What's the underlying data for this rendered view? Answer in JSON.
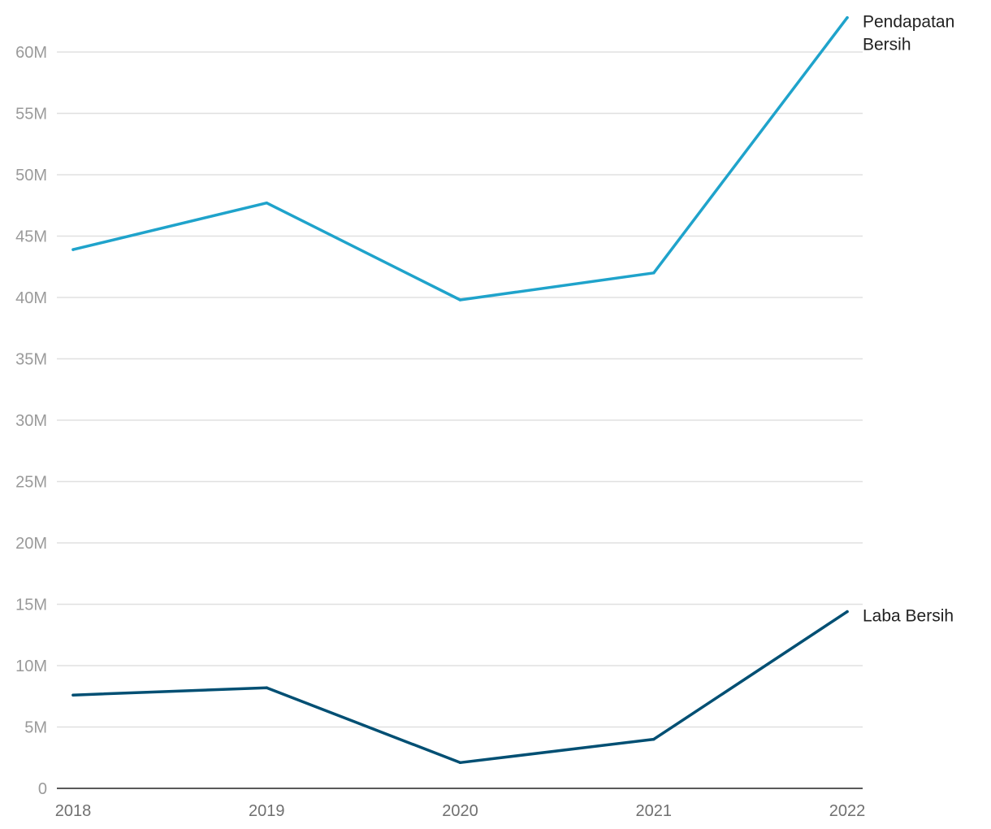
{
  "chart_data": {
    "type": "line",
    "x": [
      "2018",
      "2019",
      "2020",
      "2021",
      "2022"
    ],
    "ylim": [
      0,
      60000000
    ],
    "y_ticks": [
      "0",
      "5M",
      "10M",
      "15M",
      "20M",
      "25M",
      "30M",
      "35M",
      "40M",
      "45M",
      "50M",
      "55M",
      "60M"
    ],
    "grid": true,
    "legend": "direct labels at line ends (right)",
    "series": [
      {
        "name": "Pendapatan Bersih",
        "name_lines": [
          "Pendapatan",
          "Bersih"
        ],
        "color": "#1fa3cb",
        "values": [
          43900000,
          47700000,
          39800000,
          42000000,
          62800000
        ]
      },
      {
        "name": "Laba Bersih",
        "name_lines": [
          "Laba Bersih"
        ],
        "color": "#004f73",
        "values": [
          7600000,
          8200000,
          2100000,
          4000000,
          14400000
        ]
      }
    ]
  }
}
